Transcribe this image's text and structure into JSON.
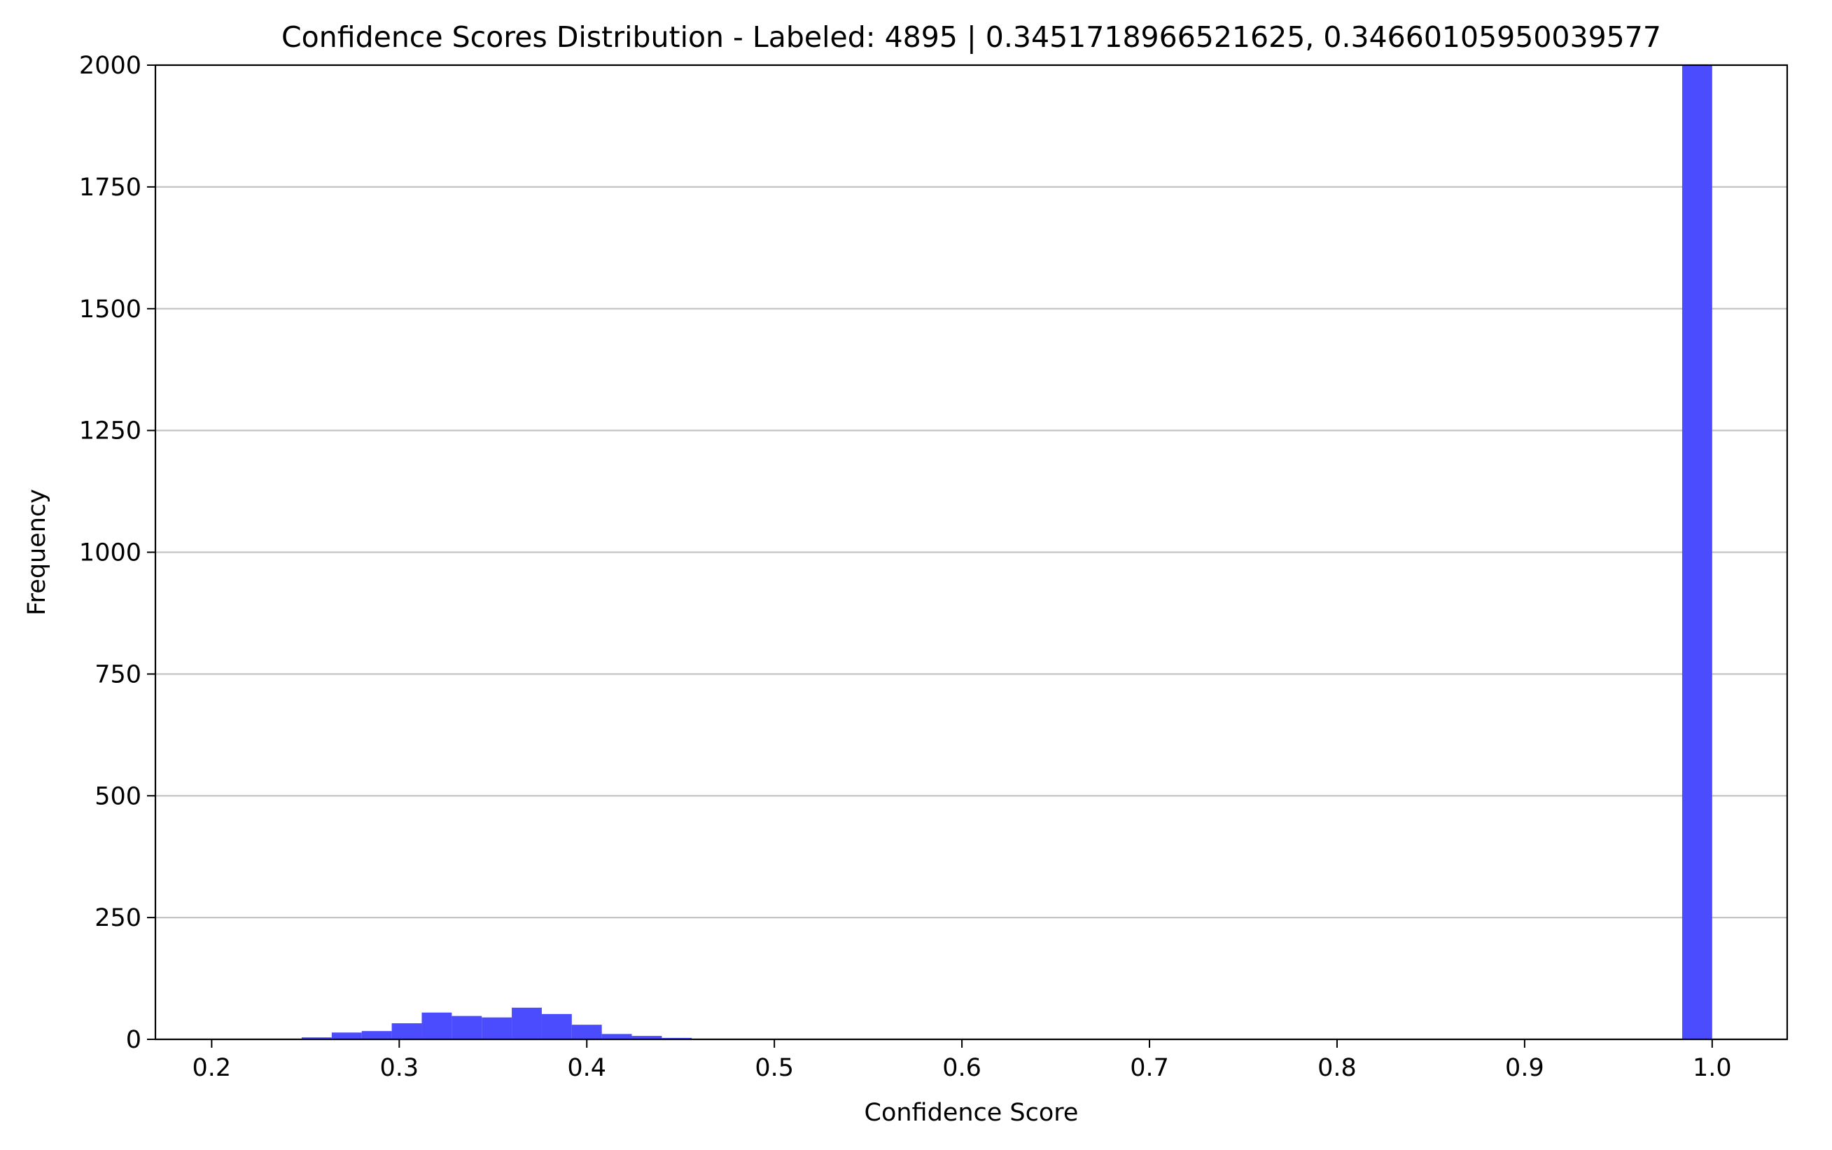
{
  "chart_data": {
    "type": "bar",
    "title": "Confidence Scores Distribution - Labeled: 4895 | 0.3451718966521625, 0.34660105950039577",
    "xlabel": "Confidence Score",
    "ylabel": "Frequency",
    "xlim": [
      0.17,
      1.04
    ],
    "ylim": [
      0,
      2000
    ],
    "xticks": [
      "0.2",
      "0.3",
      "0.4",
      "0.5",
      "0.6",
      "0.7",
      "0.8",
      "0.9",
      "1.0"
    ],
    "yticks": [
      "0",
      "250",
      "500",
      "750",
      "1000",
      "1250",
      "1500",
      "1750",
      "2000"
    ],
    "grid": "y-axis horizontal lines",
    "bar_color": "#4c4cff",
    "bin_width": 0.016,
    "bins": [
      {
        "x": 0.248,
        "value": 4
      },
      {
        "x": 0.264,
        "value": 14
      },
      {
        "x": 0.28,
        "value": 17
      },
      {
        "x": 0.296,
        "value": 33
      },
      {
        "x": 0.312,
        "value": 55
      },
      {
        "x": 0.328,
        "value": 48
      },
      {
        "x": 0.344,
        "value": 45
      },
      {
        "x": 0.36,
        "value": 65
      },
      {
        "x": 0.376,
        "value": 52
      },
      {
        "x": 0.392,
        "value": 30
      },
      {
        "x": 0.408,
        "value": 11
      },
      {
        "x": 0.424,
        "value": 7
      },
      {
        "x": 0.44,
        "value": 3
      },
      {
        "x": 0.984,
        "value": 2000
      }
    ]
  }
}
